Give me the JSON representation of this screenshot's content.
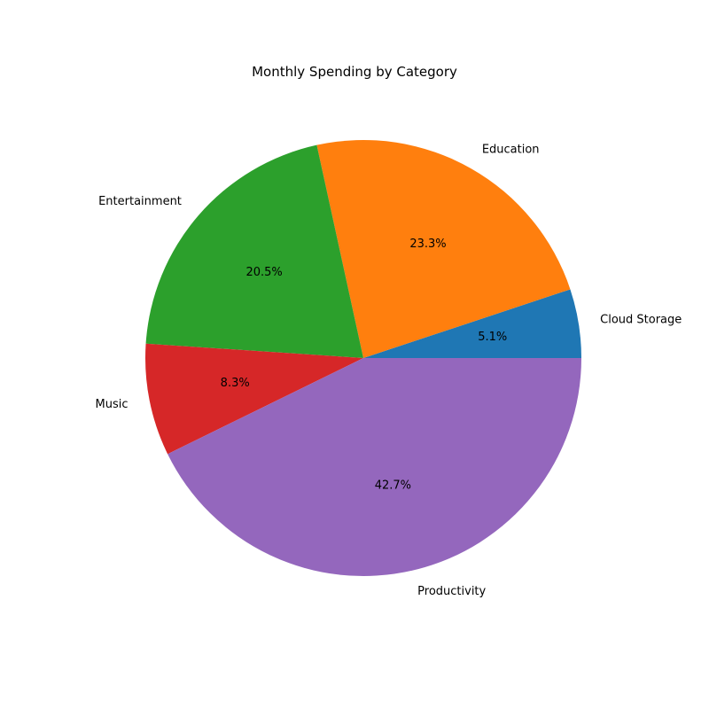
{
  "chart_data": {
    "type": "pie",
    "title": "Monthly Spending by Category",
    "categories": [
      "Cloud Storage",
      "Education",
      "Entertainment",
      "Music",
      "Productivity"
    ],
    "values": [
      5.1,
      23.3,
      20.5,
      8.3,
      42.7
    ],
    "percent_labels": [
      "5.1%",
      "23.3%",
      "20.5%",
      "8.3%",
      "42.7%"
    ],
    "colors": [
      "#1f77b4",
      "#ff7f0e",
      "#2ca02c",
      "#d62728",
      "#9467bd"
    ],
    "start_angle_deg": 0,
    "direction": "counterclockwise",
    "legend": "none"
  }
}
